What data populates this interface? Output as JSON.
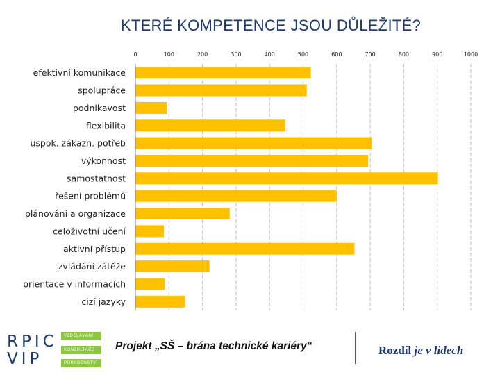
{
  "chart_data": {
    "type": "bar",
    "orientation": "horizontal",
    "title": "KTERÉ KOMPETENCE JSOU DŮLEŽITÉ?",
    "categories": [
      "efektivní komunikace",
      "spolupráce",
      "podnikavost",
      "flexibilita",
      "uspok. zákazn. potřeb",
      "výkonnost",
      "samostatnost",
      "řešení problémů",
      "plánování a organizace",
      "celoživotní učení",
      "aktivní přístup",
      "zvládání zátěže",
      "orientace v informacích",
      "cizí jazyky"
    ],
    "values": [
      523,
      511,
      93,
      447,
      705,
      694,
      902,
      600,
      281,
      85,
      653,
      221,
      87,
      148
    ],
    "xlim": [
      0,
      1000
    ],
    "xticks": [
      "0",
      "100",
      "200",
      "300",
      "400",
      "500",
      "600",
      "700",
      "800",
      "900",
      "1000"
    ],
    "grid": true,
    "bar_color": "#ffc000"
  },
  "footer": {
    "logo": {
      "line1": "RPIC",
      "line2": "VIP",
      "box1": "VZDĚLÁVÁNÍ",
      "box2": "KONZULTACE",
      "box3": "PORADENSTVÍ"
    },
    "project": "Projekt „SŠ – brána technické kariéry“",
    "slogan_word": "Rozdíl",
    "slogan_rest": "je v lidech"
  },
  "colors": {
    "title": "#1f3b73",
    "accent": "#8cc63f"
  }
}
